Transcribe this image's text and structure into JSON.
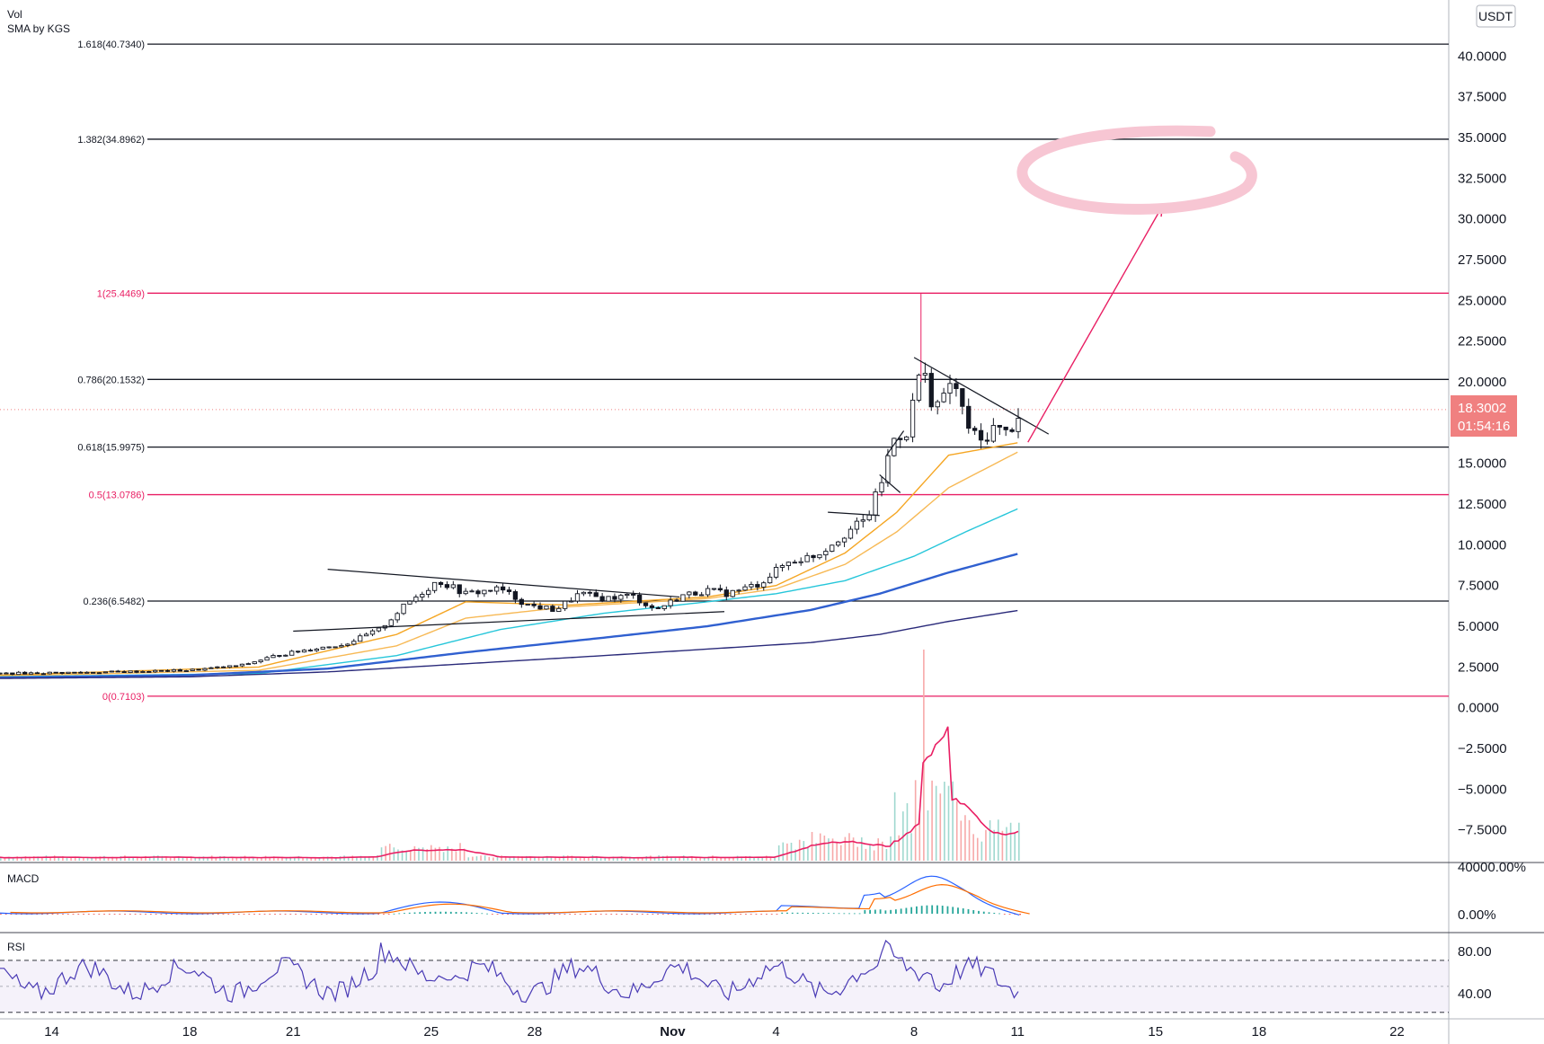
{
  "chart_data": {
    "type": "candlestick",
    "currency": "USDT",
    "legend": {
      "line1": "Vol",
      "line2": "SMA by KGS"
    },
    "y_axis": {
      "range": [
        -9.5,
        43.0
      ],
      "ticks": [
        "40.0000",
        "37.5000",
        "35.0000",
        "32.5000",
        "30.0000",
        "27.5000",
        "25.0000",
        "22.5000",
        "20.0000",
        "15.0000",
        "12.5000",
        "10.0000",
        "7.5000",
        "5.0000",
        "2.5000",
        "0.0000",
        "−2.5000",
        "−5.0000",
        "−7.5000"
      ],
      "tick_values": [
        40,
        37.5,
        35,
        32.5,
        30,
        27.5,
        25,
        22.5,
        20,
        15,
        12.5,
        10,
        7.5,
        5,
        2.5,
        0,
        -2.5,
        -5,
        -7.5
      ]
    },
    "x_axis": {
      "ticks": [
        "14",
        "18",
        "21",
        "25",
        "28",
        "Nov",
        "4",
        "8",
        "11",
        "15",
        "18",
        "22"
      ],
      "tick_days": [
        14,
        18,
        21,
        25,
        28,
        32,
        35,
        39,
        42,
        46,
        49,
        53
      ],
      "day_start": 12.5,
      "day_end": 54.5
    },
    "last_price": {
      "label": "18.3002",
      "timer": "01:54:16",
      "value": 18.3002
    },
    "fib_levels": [
      {
        "label": "1.618(40.7340)",
        "value": 40.734,
        "color": "#131722"
      },
      {
        "label": "1.382(34.8962)",
        "value": 34.8962,
        "color": "#131722"
      },
      {
        "label": "1(25.4469)",
        "value": 25.4469,
        "color": "#e91e63"
      },
      {
        "label": "0.786(20.1532)",
        "value": 20.1532,
        "color": "#131722"
      },
      {
        "label": "0.618(15.9975)",
        "value": 15.9975,
        "color": "#131722"
      },
      {
        "label": "0.5(13.0786)",
        "value": 13.0786,
        "color": "#e91e63"
      },
      {
        "label": "0.236(6.5482)",
        "value": 6.5482,
        "color": "#131722"
      },
      {
        "label": "0(0.7103)",
        "value": 0.7103,
        "color": "#e91e63"
      }
    ],
    "price_keypoints": [
      [
        12.5,
        2.1
      ],
      [
        16,
        2.2
      ],
      [
        18,
        2.3
      ],
      [
        19.5,
        2.6
      ],
      [
        20.5,
        3.2
      ],
      [
        21.5,
        3.6
      ],
      [
        22.5,
        3.9
      ],
      [
        23.5,
        4.8
      ],
      [
        24.3,
        6.4
      ],
      [
        25.2,
        7.8
      ],
      [
        26,
        7.0
      ],
      [
        27,
        7.3
      ],
      [
        27.8,
        6.3
      ],
      [
        28.6,
        6.0
      ],
      [
        29.3,
        7.0
      ],
      [
        30,
        6.7
      ],
      [
        30.8,
        6.9
      ],
      [
        31.5,
        6.0
      ],
      [
        32.3,
        6.9
      ],
      [
        33,
        7.2
      ],
      [
        33.6,
        7.0
      ],
      [
        34.5,
        7.6
      ],
      [
        35.3,
        8.9
      ],
      [
        36.2,
        9.4
      ],
      [
        36.8,
        10.4
      ],
      [
        37.2,
        11.0
      ],
      [
        37.6,
        11.5
      ],
      [
        38.0,
        13.5
      ],
      [
        38.4,
        16.5
      ],
      [
        38.8,
        17.0
      ],
      [
        39.2,
        21.0
      ],
      [
        39.5,
        19.0
      ],
      [
        39.8,
        18.5
      ],
      [
        40.1,
        20.3
      ],
      [
        40.5,
        17.5
      ],
      [
        40.9,
        16.2
      ],
      [
        41.3,
        17.2
      ],
      [
        41.7,
        16.8
      ],
      [
        42.1,
        18.3
      ]
    ],
    "ma_lines": [
      {
        "name": "MA fast",
        "color": "#f5a623",
        "points": [
          [
            12.5,
            2.0
          ],
          [
            20,
            2.5
          ],
          [
            24,
            4.5
          ],
          [
            26,
            6.5
          ],
          [
            29,
            6.3
          ],
          [
            33,
            6.8
          ],
          [
            35,
            7.5
          ],
          [
            37,
            9.5
          ],
          [
            38.5,
            12.0
          ],
          [
            40,
            15.5
          ],
          [
            42.1,
            16.3
          ]
        ]
      },
      {
        "name": "MA mid",
        "color": "#f7b955",
        "points": [
          [
            12.5,
            1.95
          ],
          [
            20,
            2.3
          ],
          [
            24,
            3.8
          ],
          [
            26,
            5.5
          ],
          [
            29,
            6.2
          ],
          [
            33,
            6.7
          ],
          [
            35,
            7.3
          ],
          [
            37,
            8.8
          ],
          [
            38.5,
            10.8
          ],
          [
            40,
            13.5
          ],
          [
            42.1,
            15.8
          ]
        ]
      },
      {
        "name": "MA teal",
        "color": "#26c6da",
        "points": [
          [
            12.5,
            1.9
          ],
          [
            20,
            2.1
          ],
          [
            24,
            3.2
          ],
          [
            27,
            4.8
          ],
          [
            30,
            5.8
          ],
          [
            33,
            6.5
          ],
          [
            35,
            7.0
          ],
          [
            37,
            7.8
          ],
          [
            39,
            9.3
          ],
          [
            40.5,
            10.8
          ],
          [
            42.1,
            12.3
          ]
        ]
      },
      {
        "name": "MA blue",
        "color": "#3060d0",
        "points": [
          [
            12.5,
            1.85
          ],
          [
            18,
            2.0
          ],
          [
            22,
            2.4
          ],
          [
            26,
            3.4
          ],
          [
            30,
            4.3
          ],
          [
            33,
            5.0
          ],
          [
            36,
            6.0
          ],
          [
            38,
            7.0
          ],
          [
            40,
            8.3
          ],
          [
            42.1,
            9.5
          ]
        ]
      },
      {
        "name": "MA navy",
        "color": "#2a2a7a",
        "points": [
          [
            12.5,
            1.8
          ],
          [
            18,
            1.9
          ],
          [
            22,
            2.2
          ],
          [
            26,
            2.7
          ],
          [
            30,
            3.2
          ],
          [
            33,
            3.6
          ],
          [
            36,
            4.0
          ],
          [
            38,
            4.5
          ],
          [
            40,
            5.3
          ],
          [
            42.1,
            6.0
          ]
        ]
      }
    ],
    "trendlines": [
      [
        [
          22.0,
          8.5
        ],
        [
          32.2,
          6.8
        ]
      ],
      [
        [
          21.0,
          4.7
        ],
        [
          33.5,
          5.9
        ]
      ],
      [
        [
          36.5,
          12.0
        ],
        [
          38.0,
          11.8
        ]
      ],
      [
        [
          38.2,
          15.5
        ],
        [
          38.7,
          17.0
        ]
      ],
      [
        [
          39.0,
          21.5
        ],
        [
          42.9,
          16.8
        ]
      ],
      [
        [
          38.6,
          13.2
        ],
        [
          38.0,
          14.3
        ]
      ]
    ],
    "projection_arrow": {
      "from": [
        42.3,
        16.3
      ],
      "to": [
        46.2,
        30.8
      ],
      "color": "#e91e63"
    },
    "target_ellipse": {
      "center": [
        45.5,
        32.5
      ],
      "color": "#f7c6d3"
    },
    "volume": {
      "spike_day": 39.2
    },
    "panes": [
      {
        "name": "MACD",
        "tick_labels": [
          "40000.00%",
          "0.00%"
        ]
      },
      {
        "name": "RSI",
        "tick_labels": [
          "80.00",
          "40.00"
        ]
      }
    ]
  }
}
